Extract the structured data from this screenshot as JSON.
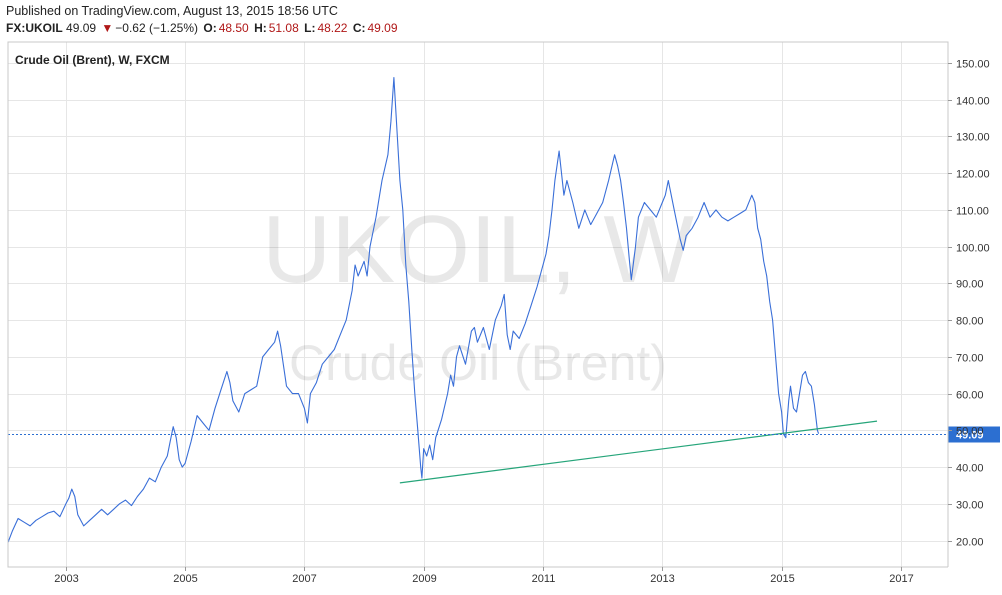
{
  "header": {
    "published": "Published on TradingView.com, August 13, 2015 18:56 UTC",
    "symbol": "FX:UKOIL",
    "last": "49.09",
    "change_arrow": "▼",
    "change": "−0.62 (−1.25%)",
    "open_label": "O:",
    "open": "48.50",
    "high_label": "H:",
    "high": "51.08",
    "low_label": "L:",
    "low": "48.22",
    "close_label": "C:",
    "close": "49.09"
  },
  "watermark": {
    "symbol": "UKOIL, W",
    "name": "Crude Oil (Brent)"
  },
  "colors": {
    "price_line": "#3a6fd8",
    "trend_line": "#26a57a",
    "last_price": "#2c6fd1",
    "grid": "#e6e6e6",
    "down": "#b01818"
  },
  "chart_data": {
    "type": "line",
    "title": "Crude Oil (Brent), W, FXCM",
    "xlabel": "",
    "ylabel": "",
    "x_ticks": [
      "2003",
      "2005",
      "2007",
      "2009",
      "2011",
      "2013",
      "2015",
      "2017"
    ],
    "y_ticks": [
      20,
      30,
      40,
      50,
      60,
      70,
      80,
      90,
      100,
      110,
      120,
      130,
      140,
      150
    ],
    "y_tick_labels": [
      "20.00",
      "30.00",
      "40.00",
      "50.00",
      "60.00",
      "70.00",
      "80.00",
      "90.00",
      "100.00",
      "110.00",
      "120.00",
      "130.00",
      "140.00",
      "150.00"
    ],
    "xlim": [
      2002.03,
      2017.79
    ],
    "ylim": [
      12.8,
      155.7
    ],
    "grid": true,
    "last_value": 49.09,
    "last_value_label": "49.09",
    "series": [
      {
        "name": "",
        "points": [
          [
            2002.03,
            19.5
          ],
          [
            2002.1,
            22.5
          ],
          [
            2002.2,
            26.0
          ],
          [
            2002.3,
            25.0
          ],
          [
            2002.4,
            24.0
          ],
          [
            2002.5,
            25.5
          ],
          [
            2002.6,
            26.5
          ],
          [
            2002.7,
            27.5
          ],
          [
            2002.8,
            28.0
          ],
          [
            2002.9,
            26.5
          ],
          [
            2003.0,
            30.0
          ],
          [
            2003.05,
            31.5
          ],
          [
            2003.1,
            34.0
          ],
          [
            2003.15,
            32.0
          ],
          [
            2003.2,
            27.0
          ],
          [
            2003.3,
            24.0
          ],
          [
            2003.4,
            25.5
          ],
          [
            2003.5,
            27.0
          ],
          [
            2003.6,
            28.5
          ],
          [
            2003.7,
            27.0
          ],
          [
            2003.8,
            28.5
          ],
          [
            2003.9,
            30.0
          ],
          [
            2004.0,
            31.0
          ],
          [
            2004.1,
            29.5
          ],
          [
            2004.2,
            32.0
          ],
          [
            2004.3,
            34.0
          ],
          [
            2004.4,
            37.0
          ],
          [
            2004.5,
            36.0
          ],
          [
            2004.6,
            40.0
          ],
          [
            2004.7,
            43.0
          ],
          [
            2004.75,
            47.0
          ],
          [
            2004.8,
            51.0
          ],
          [
            2004.85,
            48.0
          ],
          [
            2004.9,
            42.0
          ],
          [
            2004.95,
            40.0
          ],
          [
            2005.0,
            41.0
          ],
          [
            2005.1,
            47.0
          ],
          [
            2005.2,
            54.0
          ],
          [
            2005.3,
            52.0
          ],
          [
            2005.4,
            50.0
          ],
          [
            2005.5,
            56.0
          ],
          [
            2005.6,
            61.0
          ],
          [
            2005.7,
            66.0
          ],
          [
            2005.75,
            63.0
          ],
          [
            2005.8,
            58.0
          ],
          [
            2005.9,
            55.0
          ],
          [
            2006.0,
            60.0
          ],
          [
            2006.1,
            61.0
          ],
          [
            2006.2,
            62.0
          ],
          [
            2006.3,
            70.0
          ],
          [
            2006.4,
            72.0
          ],
          [
            2006.5,
            74.0
          ],
          [
            2006.55,
            77.0
          ],
          [
            2006.6,
            73.0
          ],
          [
            2006.7,
            62.0
          ],
          [
            2006.8,
            60.0
          ],
          [
            2006.9,
            60.0
          ],
          [
            2007.0,
            56.0
          ],
          [
            2007.05,
            52.0
          ],
          [
            2007.1,
            60.0
          ],
          [
            2007.2,
            63.0
          ],
          [
            2007.3,
            68.0
          ],
          [
            2007.4,
            70.0
          ],
          [
            2007.5,
            72.0
          ],
          [
            2007.6,
            76.0
          ],
          [
            2007.7,
            80.0
          ],
          [
            2007.8,
            88.0
          ],
          [
            2007.85,
            95.0
          ],
          [
            2007.9,
            92.0
          ],
          [
            2008.0,
            96.0
          ],
          [
            2008.05,
            92.0
          ],
          [
            2008.1,
            100.0
          ],
          [
            2008.2,
            108.0
          ],
          [
            2008.3,
            118.0
          ],
          [
            2008.4,
            125.0
          ],
          [
            2008.45,
            134.0
          ],
          [
            2008.5,
            146.0
          ],
          [
            2008.55,
            132.0
          ],
          [
            2008.6,
            118.0
          ],
          [
            2008.65,
            110.0
          ],
          [
            2008.7,
            95.0
          ],
          [
            2008.75,
            85.0
          ],
          [
            2008.8,
            72.0
          ],
          [
            2008.85,
            60.0
          ],
          [
            2008.9,
            50.0
          ],
          [
            2008.95,
            40.0
          ],
          [
            2008.97,
            37.0
          ],
          [
            2009.0,
            45.0
          ],
          [
            2009.05,
            43.0
          ],
          [
            2009.1,
            46.0
          ],
          [
            2009.15,
            42.0
          ],
          [
            2009.2,
            48.0
          ],
          [
            2009.3,
            53.0
          ],
          [
            2009.4,
            60.0
          ],
          [
            2009.45,
            65.0
          ],
          [
            2009.5,
            62.0
          ],
          [
            2009.55,
            70.0
          ],
          [
            2009.6,
            73.0
          ],
          [
            2009.7,
            68.0
          ],
          [
            2009.8,
            77.0
          ],
          [
            2009.85,
            78.0
          ],
          [
            2009.9,
            74.0
          ],
          [
            2010.0,
            78.0
          ],
          [
            2010.1,
            72.0
          ],
          [
            2010.2,
            80.0
          ],
          [
            2010.3,
            84.0
          ],
          [
            2010.35,
            87.0
          ],
          [
            2010.4,
            76.0
          ],
          [
            2010.45,
            72.0
          ],
          [
            2010.5,
            77.0
          ],
          [
            2010.6,
            75.0
          ],
          [
            2010.7,
            79.0
          ],
          [
            2010.8,
            84.0
          ],
          [
            2010.9,
            89.0
          ],
          [
            2011.0,
            95.0
          ],
          [
            2011.05,
            98.0
          ],
          [
            2011.1,
            103.0
          ],
          [
            2011.15,
            110.0
          ],
          [
            2011.2,
            118.0
          ],
          [
            2011.27,
            126.0
          ],
          [
            2011.35,
            114.0
          ],
          [
            2011.4,
            118.0
          ],
          [
            2011.5,
            112.0
          ],
          [
            2011.6,
            105.0
          ],
          [
            2011.7,
            110.0
          ],
          [
            2011.8,
            106.0
          ],
          [
            2011.9,
            109.0
          ],
          [
            2012.0,
            112.0
          ],
          [
            2012.1,
            118.0
          ],
          [
            2012.2,
            125.0
          ],
          [
            2012.25,
            122.0
          ],
          [
            2012.3,
            118.0
          ],
          [
            2012.35,
            112.0
          ],
          [
            2012.4,
            105.0
          ],
          [
            2012.45,
            96.0
          ],
          [
            2012.48,
            91.0
          ],
          [
            2012.55,
            100.0
          ],
          [
            2012.6,
            108.0
          ],
          [
            2012.7,
            112.0
          ],
          [
            2012.8,
            110.0
          ],
          [
            2012.9,
            108.0
          ],
          [
            2013.0,
            112.0
          ],
          [
            2013.05,
            114.0
          ],
          [
            2013.1,
            118.0
          ],
          [
            2013.2,
            110.0
          ],
          [
            2013.3,
            102.0
          ],
          [
            2013.35,
            99.0
          ],
          [
            2013.4,
            103.0
          ],
          [
            2013.5,
            105.0
          ],
          [
            2013.6,
            108.0
          ],
          [
            2013.7,
            112.0
          ],
          [
            2013.8,
            108.0
          ],
          [
            2013.9,
            110.0
          ],
          [
            2014.0,
            108.0
          ],
          [
            2014.1,
            107.0
          ],
          [
            2014.2,
            108.0
          ],
          [
            2014.3,
            109.0
          ],
          [
            2014.4,
            110.0
          ],
          [
            2014.5,
            114.0
          ],
          [
            2014.55,
            112.0
          ],
          [
            2014.6,
            105.0
          ],
          [
            2014.65,
            102.0
          ],
          [
            2014.7,
            96.0
          ],
          [
            2014.75,
            92.0
          ],
          [
            2014.8,
            85.0
          ],
          [
            2014.85,
            80.0
          ],
          [
            2014.9,
            70.0
          ],
          [
            2014.95,
            60.0
          ],
          [
            2015.0,
            55.0
          ],
          [
            2015.03,
            49.0
          ],
          [
            2015.07,
            48.0
          ],
          [
            2015.12,
            58.0
          ],
          [
            2015.15,
            62.0
          ],
          [
            2015.2,
            56.0
          ],
          [
            2015.25,
            55.0
          ],
          [
            2015.3,
            60.0
          ],
          [
            2015.35,
            65.0
          ],
          [
            2015.4,
            66.0
          ],
          [
            2015.45,
            63.0
          ],
          [
            2015.5,
            62.0
          ],
          [
            2015.55,
            57.0
          ],
          [
            2015.6,
            50.0
          ],
          [
            2015.62,
            49.09
          ]
        ]
      }
    ],
    "trend_line": [
      [
        2008.6,
        35.7
      ],
      [
        2016.6,
        52.5
      ]
    ]
  }
}
